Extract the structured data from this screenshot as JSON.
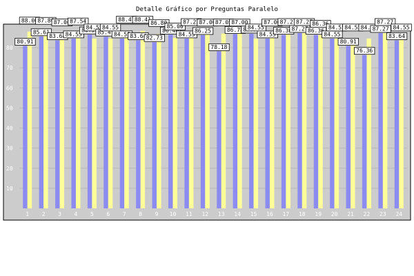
{
  "chart_data": {
    "type": "bar",
    "title": "Detalle Gráfico por Preguntas Paralelo",
    "xlabel": "",
    "ylabel": "",
    "categories": [
      "1",
      "2",
      "3",
      "4",
      "5",
      "6",
      "7",
      "8",
      "9",
      "10",
      "11",
      "12",
      "13",
      "14",
      "15",
      "16",
      "17",
      "18",
      "19",
      "20",
      "21",
      "22",
      "23",
      "24"
    ],
    "ylim": [
      0,
      90
    ],
    "yticks": [
      10,
      20,
      30,
      40,
      50,
      60,
      70,
      80
    ],
    "grid": true,
    "colors": {
      "series_a": "#8c8cf0",
      "series_b": "#ffff99",
      "plot_bg": "#cccccc",
      "frame": "#000000"
    },
    "series": [
      {
        "values": [
          80.91,
          85.61,
          83.64,
          84.55,
          86.51,
          85.47,
          84.55,
          83.64,
          82.73,
          86.46,
          84.55,
          86.25,
          78.18,
          86.78,
          86.94,
          84.55,
          86.36,
          87.27,
          86.36,
          84.55,
          80.91,
          76.36,
          87.27,
          83.64
        ]
      },
      {
        "values": [
          88.0,
          87.86,
          87.06,
          87.54,
          84.55,
          84.55,
          88.47,
          88.41,
          86.8,
          85.0,
          87.23,
          87.0,
          87.05,
          87.0,
          84.55,
          87.0,
          87.27,
          87.27,
          86.36,
          84.55,
          84.55,
          84.55,
          87.27,
          84.55
        ]
      }
    ]
  }
}
